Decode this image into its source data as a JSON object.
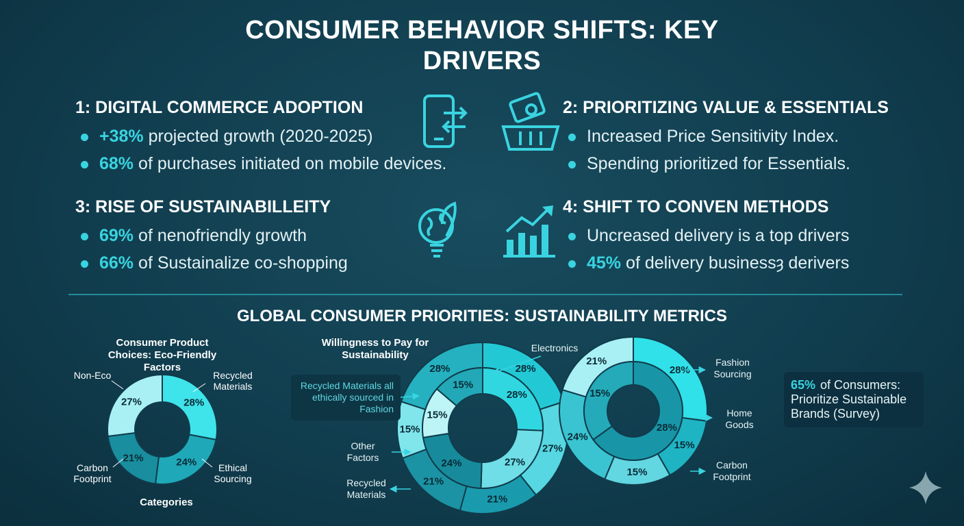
{
  "title": "CONSUMER BEHAVIOR SHIFTS: KEY DRIVERS",
  "sections": [
    {
      "heading": "1: DIGITAL COMMERCE ADOPTION",
      "bullets": [
        {
          "highlight": "+38%",
          "text": "projected growth (2020-2025)"
        },
        {
          "highlight": "68%",
          "text": "of purchases initiated on mobile devices."
        }
      ]
    },
    {
      "heading": "2: PRIORITIZING VALUE & ESSENTIALS",
      "bullets": [
        {
          "text": "Increased Price Sensitivity Index."
        },
        {
          "text": "Spending prioritized for Essentials."
        }
      ]
    },
    {
      "heading": "3: RISE OF SUSTAINABILLEITY",
      "bullets": [
        {
          "highlight": "69%",
          "text": "of nenofriendly growth"
        },
        {
          "highlight": "66%",
          "text": "of Sustainalize co-shopping"
        }
      ]
    },
    {
      "heading": "4: SHIFT TO CONVEN METHODS",
      "bullets": [
        {
          "text": "Uncreased delivery is a top drivers"
        },
        {
          "highlight": "45%",
          "text": "of delivery businessȝ derivers"
        }
      ]
    }
  ],
  "metrics_title": "GLOBAL CONSUMER PRIORITIES: SUSTAINABILITY METRICS",
  "chart_data": [
    {
      "type": "donut",
      "title": "Consumer Product Choices: Eco-Friendly Factors",
      "x_label": "Categories",
      "categories": [
        "Recycled Materials",
        "Ethical Sourcing",
        "Carbon Footprint",
        "Non-Eco"
      ],
      "values": [
        28,
        24,
        21,
        27
      ],
      "value_labels": [
        "28%",
        "24%",
        "21%",
        "27%"
      ],
      "colors": [
        "#3fe3ea",
        "#1fa9b8",
        "#198e9f",
        "#a9f0f4"
      ]
    },
    {
      "type": "donut",
      "title": "Willingness to Pay for Sustainability",
      "series": [
        {
          "values": [
            28,
            27,
            21,
            21,
            15,
            28
          ],
          "value_labels": [
            "28%",
            "27%",
            "21%",
            "21%",
            "15%",
            "28%"
          ],
          "colors": [
            "#22c9d5",
            "#56d7e1",
            "#1a9bad",
            "#1c93a4",
            "#80e6ec",
            "#25b1c0"
          ]
        },
        {
          "values": [
            28,
            27,
            24,
            15,
            15
          ],
          "value_labels": [
            "28%",
            "27%",
            "24%",
            "15%",
            "15%"
          ],
          "colors": [
            "#30d7e1",
            "#6fdee7",
            "#178b9b",
            "#bdf5f7",
            "#22a8b7"
          ]
        }
      ],
      "annotations": [
        "Electronics",
        "Recycled Materials all ethically sourced in Fashion",
        "Other Factors",
        "Recycled Materials"
      ]
    },
    {
      "type": "donut",
      "series": [
        {
          "values": [
            28,
            15,
            15,
            24,
            21
          ],
          "value_labels": [
            "28%",
            "15%",
            "15%",
            "24%",
            "21%"
          ],
          "colors": [
            "#30e1e9",
            "#1fb4c3",
            "#62d6e1",
            "#3ac4d1",
            "#a9f0f4"
          ]
        },
        {
          "values": [
            28,
            15
          ],
          "value_labels": [
            "28%",
            "15%"
          ],
          "colors": [
            "#1896a7",
            "#24aab9"
          ]
        }
      ],
      "annotations": [
        "Fashion Sourcing",
        "Home Goods",
        "Carbon Footprint"
      ]
    }
  ],
  "callout": {
    "highlight": "65%",
    "text": "of Consumers: Prioritize Sustainable Brands (Survey)"
  }
}
